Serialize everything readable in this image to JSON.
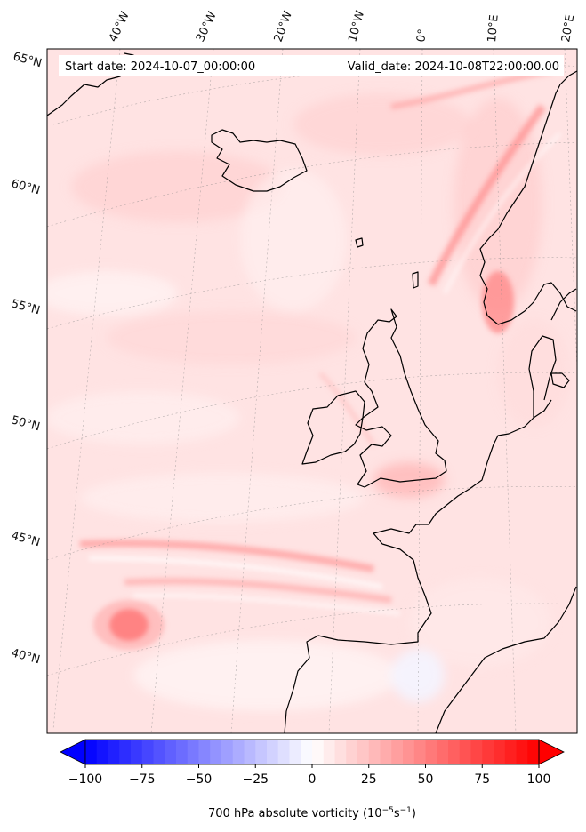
{
  "map": {
    "start_date": "Start date: 2024-10-07_00:00:00",
    "valid_date": "Valid_date: 2024-10-08T22:00:00.00",
    "lon_labels": [
      "40°W",
      "30°W",
      "20°W",
      "10°W",
      "0°",
      "10°E",
      "20°E"
    ],
    "lat_labels": [
      "65°N",
      "60°N",
      "55°N",
      "50°N",
      "45°N",
      "40°N"
    ],
    "field": "700 hPa absolute vorticity",
    "colormap": "bwr"
  },
  "colorbar": {
    "ticks": [
      "−100",
      "−75",
      "−50",
      "−25",
      "0",
      "25",
      "50",
      "75",
      "100"
    ],
    "min": -100,
    "max": 100,
    "levels": 40,
    "extend": "both",
    "label_main": "700 hPa absolute vorticity (10",
    "label_exp1": "−5",
    "label_mid": "s",
    "label_exp2": "−1",
    "label_end": ")"
  }
}
